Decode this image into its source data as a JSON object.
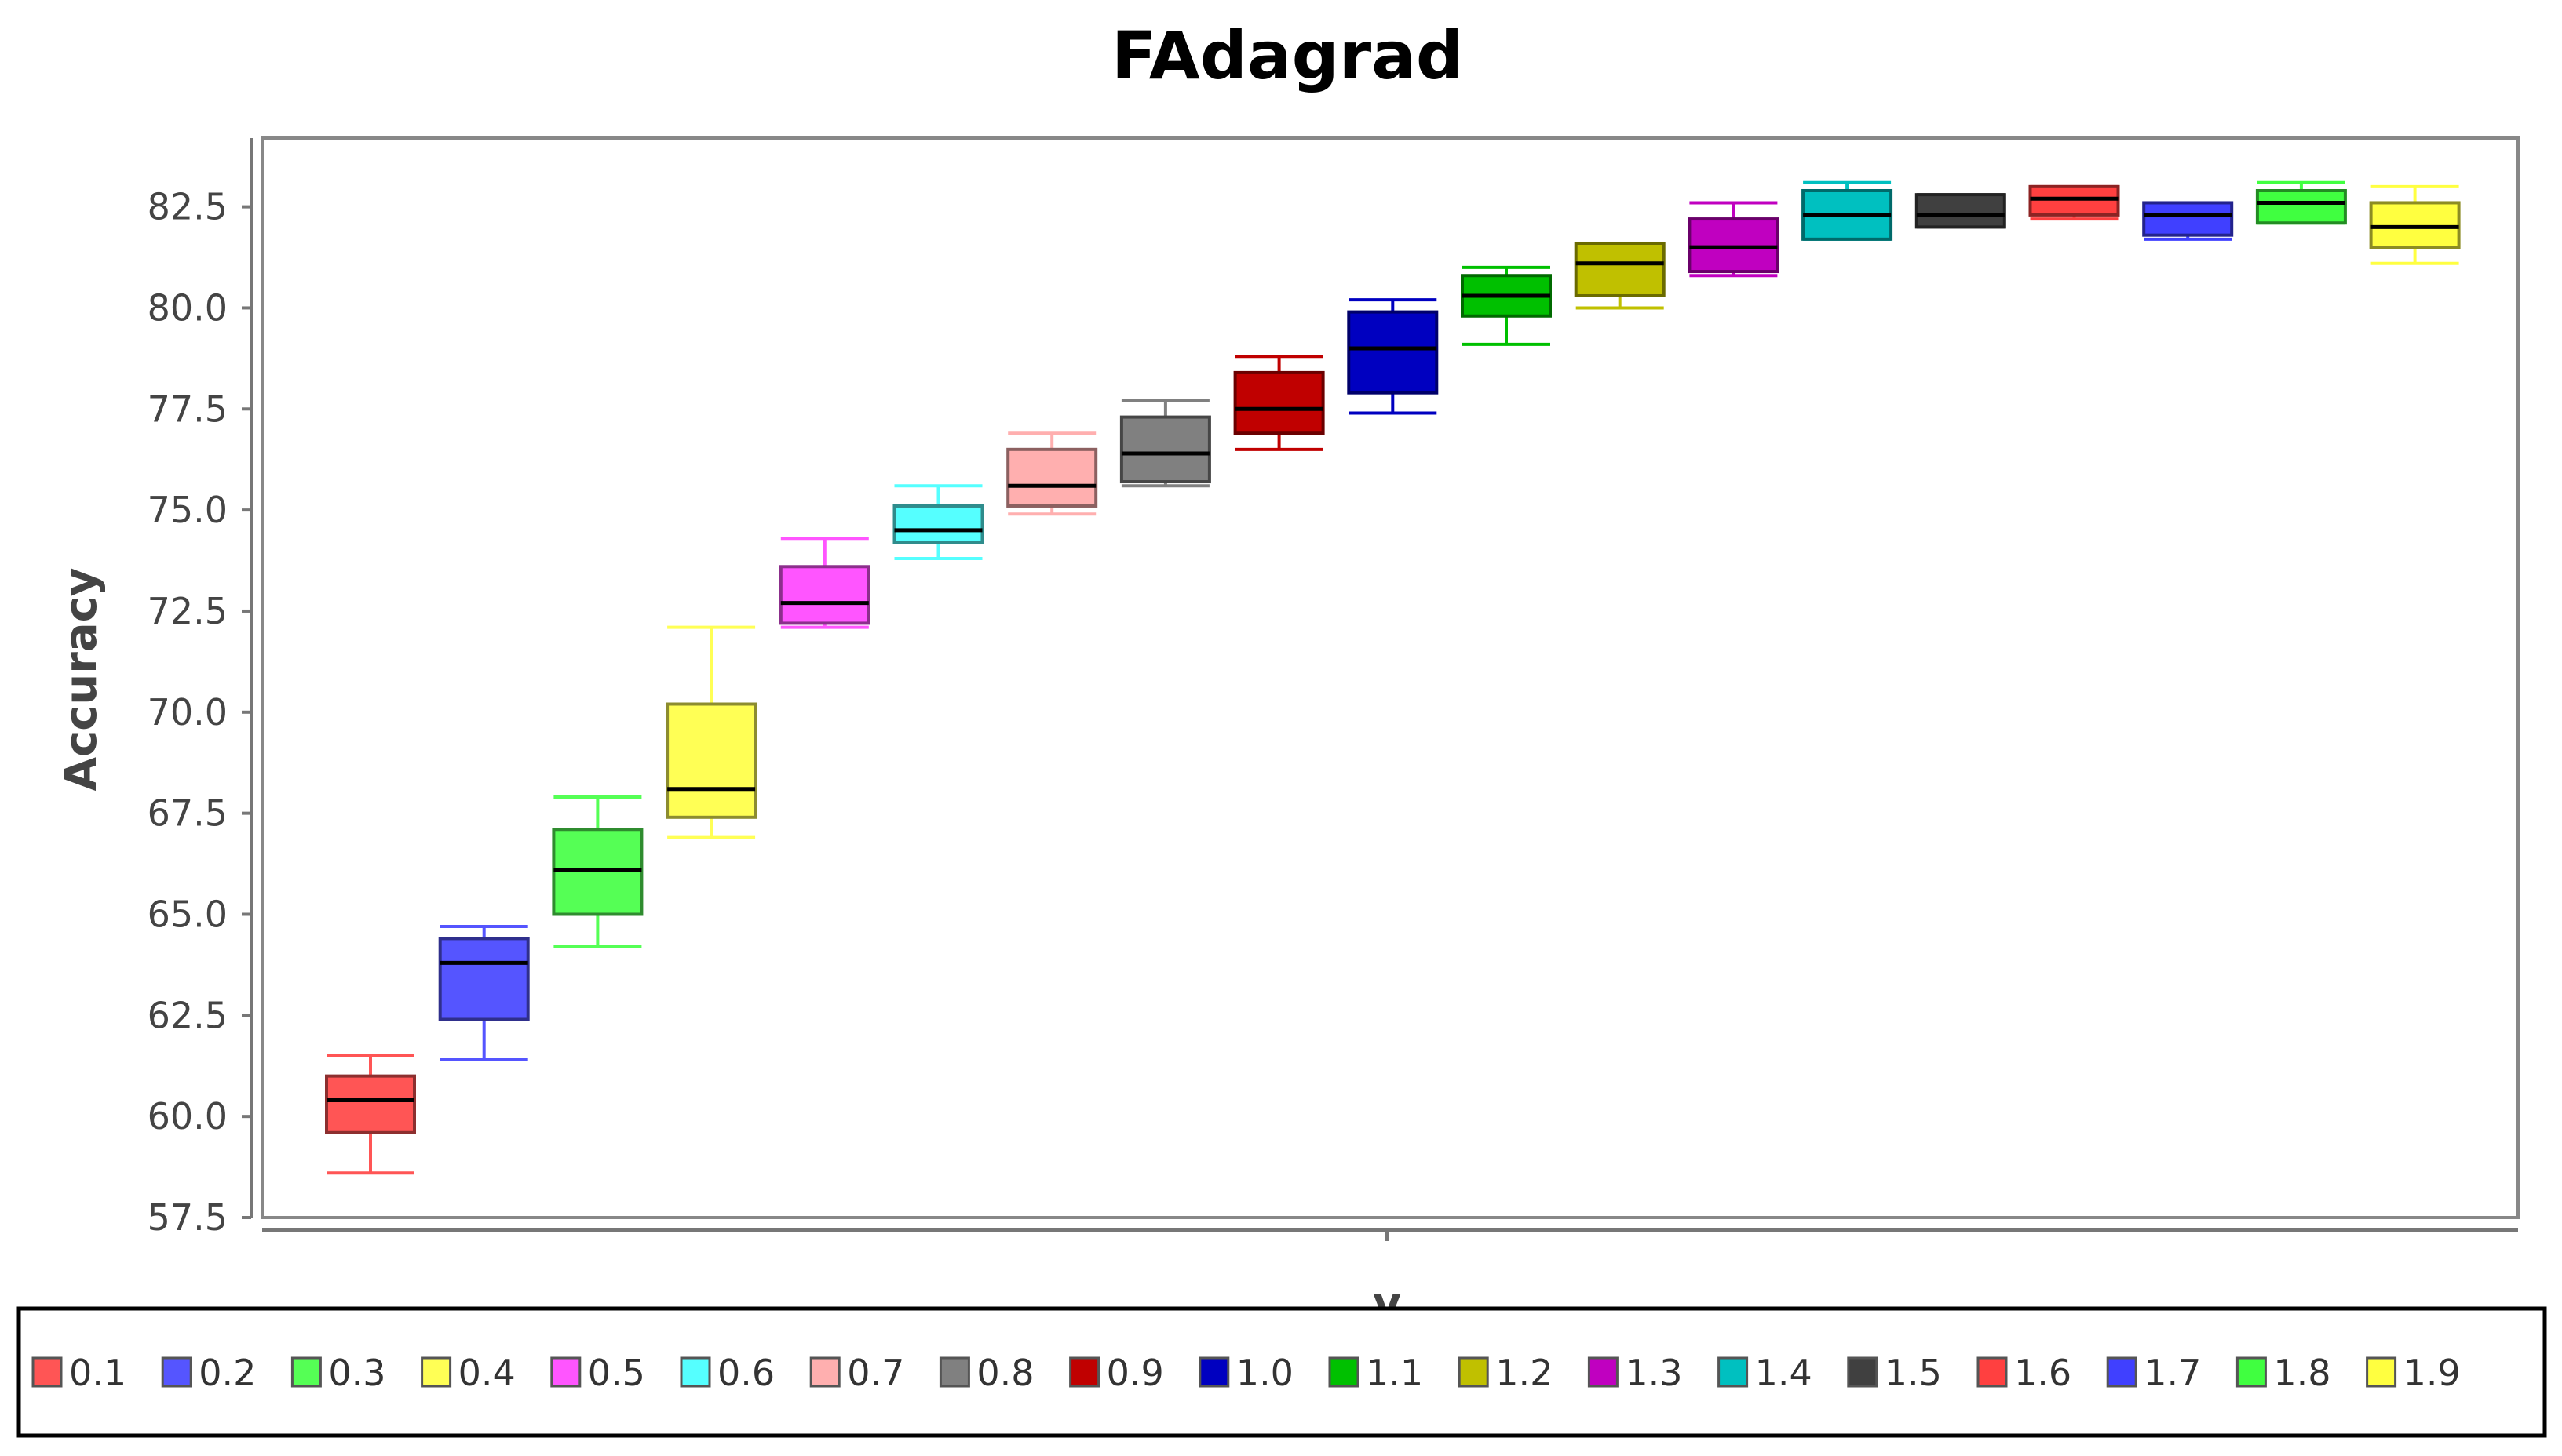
{
  "chart_data": {
    "type": "box",
    "title": "FAdagrad",
    "xlabel": "v",
    "ylabel": "Accuracy",
    "ylim": [
      57.5,
      84.2
    ],
    "yticks": [
      "57.5",
      "60.0",
      "62.5",
      "65.0",
      "67.5",
      "70.0",
      "72.5",
      "75.0",
      "77.5",
      "80.0",
      "82.5"
    ],
    "ytick_values": [
      57.5,
      60.0,
      62.5,
      65.0,
      67.5,
      70.0,
      72.5,
      75.0,
      77.5,
      80.0,
      82.5
    ],
    "legend_position": "bottom",
    "grid": false,
    "series": [
      {
        "name": "0.1",
        "color": "#ff5555",
        "min": 58.6,
        "q1": 59.6,
        "median": 60.4,
        "q3": 61.0,
        "max": 61.5
      },
      {
        "name": "0.2",
        "color": "#5555ff",
        "min": 61.4,
        "q1": 62.4,
        "median": 63.8,
        "q3": 64.4,
        "max": 64.7
      },
      {
        "name": "0.3",
        "color": "#55ff55",
        "min": 64.2,
        "q1": 65.0,
        "median": 66.1,
        "q3": 67.1,
        "max": 67.9
      },
      {
        "name": "0.4",
        "color": "#ffff55",
        "min": 66.9,
        "q1": 67.4,
        "median": 68.1,
        "q3": 70.2,
        "max": 72.1
      },
      {
        "name": "0.5",
        "color": "#ff55ff",
        "min": 72.1,
        "q1": 72.2,
        "median": 72.7,
        "q3": 73.6,
        "max": 74.3
      },
      {
        "name": "0.6",
        "color": "#55ffff",
        "min": 73.8,
        "q1": 74.2,
        "median": 74.5,
        "q3": 75.1,
        "max": 75.6
      },
      {
        "name": "0.7",
        "color": "#ffafaf",
        "min": 74.9,
        "q1": 75.1,
        "median": 75.6,
        "q3": 76.5,
        "max": 76.9
      },
      {
        "name": "0.8",
        "color": "#808080",
        "min": 75.6,
        "q1": 75.7,
        "median": 76.4,
        "q3": 77.3,
        "max": 77.7
      },
      {
        "name": "0.9",
        "color": "#c00000",
        "min": 76.5,
        "q1": 76.9,
        "median": 77.5,
        "q3": 78.4,
        "max": 78.8
      },
      {
        "name": "1.0",
        "color": "#0000c0",
        "min": 77.4,
        "q1": 77.9,
        "median": 79.0,
        "q3": 79.9,
        "max": 80.2
      },
      {
        "name": "1.1",
        "color": "#00c000",
        "min": 79.1,
        "q1": 79.8,
        "median": 80.3,
        "q3": 80.8,
        "max": 81.0
      },
      {
        "name": "1.2",
        "color": "#c0c000",
        "min": 80.0,
        "q1": 80.3,
        "median": 81.1,
        "q3": 81.6,
        "max": 81.6
      },
      {
        "name": "1.3",
        "color": "#c000c0",
        "min": 80.8,
        "q1": 80.9,
        "median": 81.5,
        "q3": 82.2,
        "max": 82.6
      },
      {
        "name": "1.4",
        "color": "#00c0c0",
        "min": 81.7,
        "q1": 81.7,
        "median": 82.3,
        "q3": 82.9,
        "max": 83.1
      },
      {
        "name": "1.5",
        "color": "#404040",
        "min": 82.0,
        "q1": 82.0,
        "median": 82.3,
        "q3": 82.8,
        "max": 82.8
      },
      {
        "name": "1.6",
        "color": "#ff4040",
        "min": 82.2,
        "q1": 82.3,
        "median": 82.7,
        "q3": 83.0,
        "max": 83.0
      },
      {
        "name": "1.7",
        "color": "#4040ff",
        "min": 81.7,
        "q1": 81.8,
        "median": 82.3,
        "q3": 82.6,
        "max": 82.6
      },
      {
        "name": "1.8",
        "color": "#40ff40",
        "min": 82.1,
        "q1": 82.1,
        "median": 82.6,
        "q3": 82.9,
        "max": 83.1
      },
      {
        "name": "1.9",
        "color": "#ffff40",
        "min": 81.1,
        "q1": 81.5,
        "median": 82.0,
        "q3": 82.6,
        "max": 83.0
      }
    ]
  }
}
